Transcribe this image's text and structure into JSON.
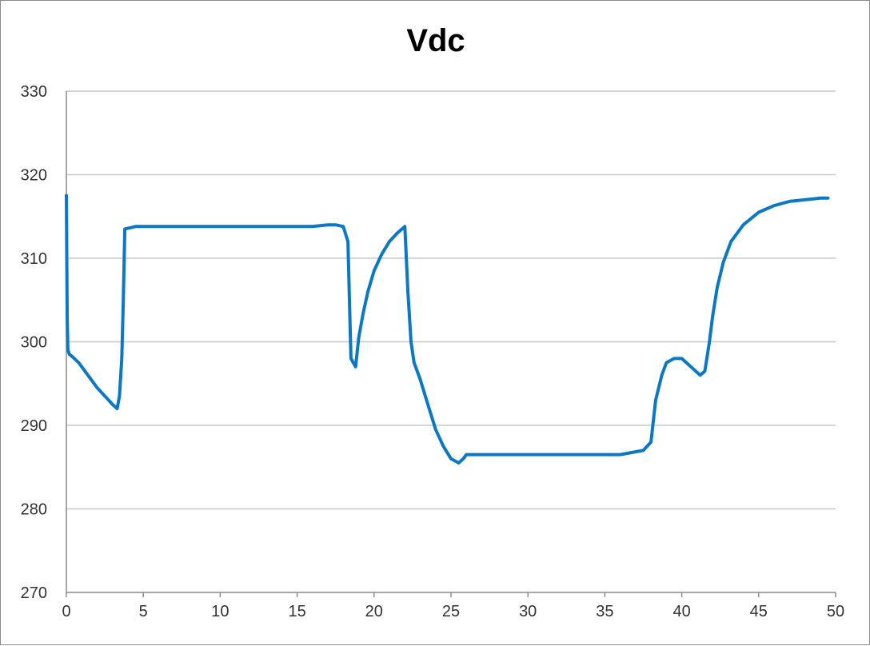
{
  "chart_data": {
    "type": "line",
    "title": "Vdc",
    "xlabel": "",
    "ylabel": "",
    "xlim": [
      0,
      50
    ],
    "ylim": [
      270,
      330
    ],
    "x_ticks": [
      0,
      5,
      10,
      15,
      20,
      25,
      30,
      35,
      40,
      45,
      50
    ],
    "y_ticks": [
      270,
      280,
      290,
      300,
      310,
      320,
      330
    ],
    "grid": "horizontal",
    "legend": "none",
    "colors": {
      "series": "#0a78c2",
      "grid": "#c8c8c8",
      "axis": "#8c8c8c"
    },
    "series": [
      {
        "x": [
          0.0,
          0.05,
          0.1,
          0.2,
          0.4,
          0.8,
          1.2,
          1.6,
          2.0,
          2.5,
          3.0,
          3.3,
          3.45,
          3.6,
          3.7,
          3.8,
          4.5,
          6,
          8,
          10,
          12,
          14,
          16,
          17,
          17.5,
          18.0,
          18.3,
          18.4,
          18.5,
          18.8,
          19.0,
          19.3,
          19.6,
          20.0,
          20.5,
          21.0,
          21.5,
          22.0,
          22.2,
          22.4,
          22.6,
          23.0,
          23.5,
          24.0,
          24.5,
          25.0,
          25.5,
          25.8,
          26.0,
          26.5,
          28,
          30,
          32,
          34,
          36,
          37.5,
          38.0,
          38.3,
          38.7,
          39.0,
          39.5,
          40.0,
          40.3,
          40.6,
          40.9,
          41.2,
          41.5,
          41.8,
          42.0,
          42.3,
          42.7,
          43.2,
          44.0,
          45.0,
          46.0,
          47.0,
          48.0,
          49.0,
          49.5
        ],
        "y": [
          317.5,
          303,
          299,
          298.5,
          298.2,
          297.5,
          296.5,
          295.5,
          294.5,
          293.5,
          292.5,
          292,
          293.5,
          298,
          305,
          313.5,
          313.8,
          313.8,
          313.8,
          313.8,
          313.8,
          313.8,
          313.8,
          314,
          314,
          313.8,
          312,
          305,
          298,
          297,
          300.5,
          303.5,
          306,
          308.5,
          310.5,
          312,
          313,
          313.8,
          306,
          300,
          297.5,
          295.5,
          292.5,
          289.5,
          287.5,
          286,
          285.5,
          286,
          286.5,
          286.5,
          286.5,
          286.5,
          286.5,
          286.5,
          286.5,
          287,
          288,
          293,
          296,
          297.5,
          298,
          298,
          297.5,
          297,
          296.5,
          296,
          296.5,
          300,
          303,
          306.5,
          309.5,
          312,
          314,
          315.5,
          316.3,
          316.8,
          317,
          317.2,
          317.2
        ]
      }
    ]
  }
}
